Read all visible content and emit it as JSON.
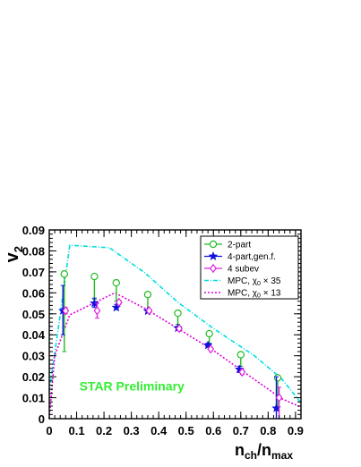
{
  "chart_data": {
    "type": "scatter",
    "xlabel": {
      "main": "n",
      "sub": "ch",
      "sep": "/n",
      "sub2": "max"
    },
    "ylabel": {
      "main": "v",
      "sub": "2"
    },
    "xlim": [
      0,
      0.92
    ],
    "ylim": [
      0,
      0.09
    ],
    "x_ticks": [
      0,
      0.1,
      0.2,
      0.3,
      0.4,
      0.5,
      0.6,
      0.7,
      0.8,
      0.9
    ],
    "x_tick_labels": [
      "0",
      "0.1",
      "0.2",
      "0.3",
      "0.4",
      "0.5",
      "0.6",
      "0.7",
      "0.8",
      "0.9"
    ],
    "y_ticks": [
      0,
      0.01,
      0.02,
      0.03,
      0.04,
      0.05,
      0.06,
      0.07,
      0.08,
      0.09
    ],
    "y_tick_labels": [
      "0",
      "0.01",
      "0.02",
      "0.03",
      "0.04",
      "0.05",
      "0.06",
      "0.07",
      "0.08",
      "0.09"
    ],
    "annotation": {
      "text": "STAR Preliminary",
      "color": "#33ee33"
    },
    "series": [
      {
        "name": "2-part",
        "marker": "open-circle",
        "color": "#22bb22",
        "points": [
          {
            "x": 0.055,
            "y": 0.069,
            "lo": 0.032,
            "hi": 0.069
          },
          {
            "x": 0.165,
            "y": 0.0678,
            "lo": 0.057,
            "hi": 0.0678
          },
          {
            "x": 0.245,
            "y": 0.0648,
            "lo": 0.056,
            "hi": 0.0648
          },
          {
            "x": 0.36,
            "y": 0.0592,
            "lo": 0.052,
            "hi": 0.0592
          },
          {
            "x": 0.47,
            "y": 0.0503,
            "lo": 0.045,
            "hi": 0.0503
          },
          {
            "x": 0.585,
            "y": 0.0405,
            "lo": 0.036,
            "hi": 0.0405
          },
          {
            "x": 0.7,
            "y": 0.0305,
            "lo": 0.025,
            "hi": 0.0305
          },
          {
            "x": 0.835,
            "y": 0.0195,
            "lo": 0.004,
            "hi": 0.0195
          }
        ]
      },
      {
        "name": "4-part,gen.f.",
        "marker": "star",
        "color": "#1111dd",
        "points": [
          {
            "x": 0.05,
            "y": 0.0515,
            "lo": 0.04,
            "hi": 0.0635
          },
          {
            "x": 0.165,
            "y": 0.055,
            "lo": 0.053,
            "hi": 0.0575
          },
          {
            "x": 0.245,
            "y": 0.053,
            "lo": 0.052,
            "hi": 0.0545
          },
          {
            "x": 0.36,
            "y": 0.0513,
            "lo": 0.0505,
            "hi": 0.052
          },
          {
            "x": 0.47,
            "y": 0.0432,
            "lo": 0.0425,
            "hi": 0.044
          },
          {
            "x": 0.58,
            "y": 0.035,
            "lo": 0.034,
            "hi": 0.036
          },
          {
            "x": 0.695,
            "y": 0.0235,
            "lo": 0.022,
            "hi": 0.025
          },
          {
            "x": 0.83,
            "y": 0.005,
            "lo": 0.0,
            "hi": 0.02
          }
        ]
      },
      {
        "name": "4 subev",
        "marker": "open-diamond",
        "color": "#dd22dd",
        "points": [
          {
            "x": 0.06,
            "y": 0.0515,
            "lo": 0.05,
            "hi": 0.053
          },
          {
            "x": 0.175,
            "y": 0.0515,
            "lo": 0.048,
            "hi": 0.055
          },
          {
            "x": 0.255,
            "y": 0.0555,
            "lo": 0.0545,
            "hi": 0.0565
          },
          {
            "x": 0.365,
            "y": 0.0515,
            "lo": 0.051,
            "hi": 0.052
          },
          {
            "x": 0.475,
            "y": 0.043,
            "lo": 0.0425,
            "hi": 0.0435
          },
          {
            "x": 0.59,
            "y": 0.0332,
            "lo": 0.0325,
            "hi": 0.034
          },
          {
            "x": 0.705,
            "y": 0.0222,
            "lo": 0.021,
            "hi": 0.0235
          },
          {
            "x": 0.84,
            "y": 0.01,
            "lo": 0.0,
            "hi": 0.015
          }
        ]
      }
    ],
    "curves": [
      {
        "name": "MPC,  χ₀ × 35",
        "label_main": "MPC,  χ",
        "label_sub": "0",
        "label_tail": " × 35",
        "style": "dash-dot",
        "color": "#00dddd",
        "points": [
          [
            0.0,
            0.013
          ],
          [
            0.035,
            0.045
          ],
          [
            0.075,
            0.0827
          ],
          [
            0.22,
            0.0815
          ],
          [
            0.35,
            0.0695
          ],
          [
            0.47,
            0.0555
          ],
          [
            0.6,
            0.043
          ],
          [
            0.75,
            0.03
          ],
          [
            0.85,
            0.019
          ],
          [
            0.92,
            0.0075
          ]
        ]
      },
      {
        "name": "MPC,  χ₀ × 13",
        "label_main": "MPC,  χ",
        "label_sub": "0",
        "label_tail": " × 13",
        "style": "dotted",
        "color": "#dd00dd",
        "points": [
          [
            0.0,
            0.0
          ],
          [
            0.02,
            0.03
          ],
          [
            0.075,
            0.0495
          ],
          [
            0.24,
            0.06
          ],
          [
            0.35,
            0.0525
          ],
          [
            0.47,
            0.043
          ],
          [
            0.6,
            0.0325
          ],
          [
            0.73,
            0.0205
          ],
          [
            0.85,
            0.0095
          ],
          [
            0.92,
            0.0055
          ]
        ]
      }
    ]
  }
}
